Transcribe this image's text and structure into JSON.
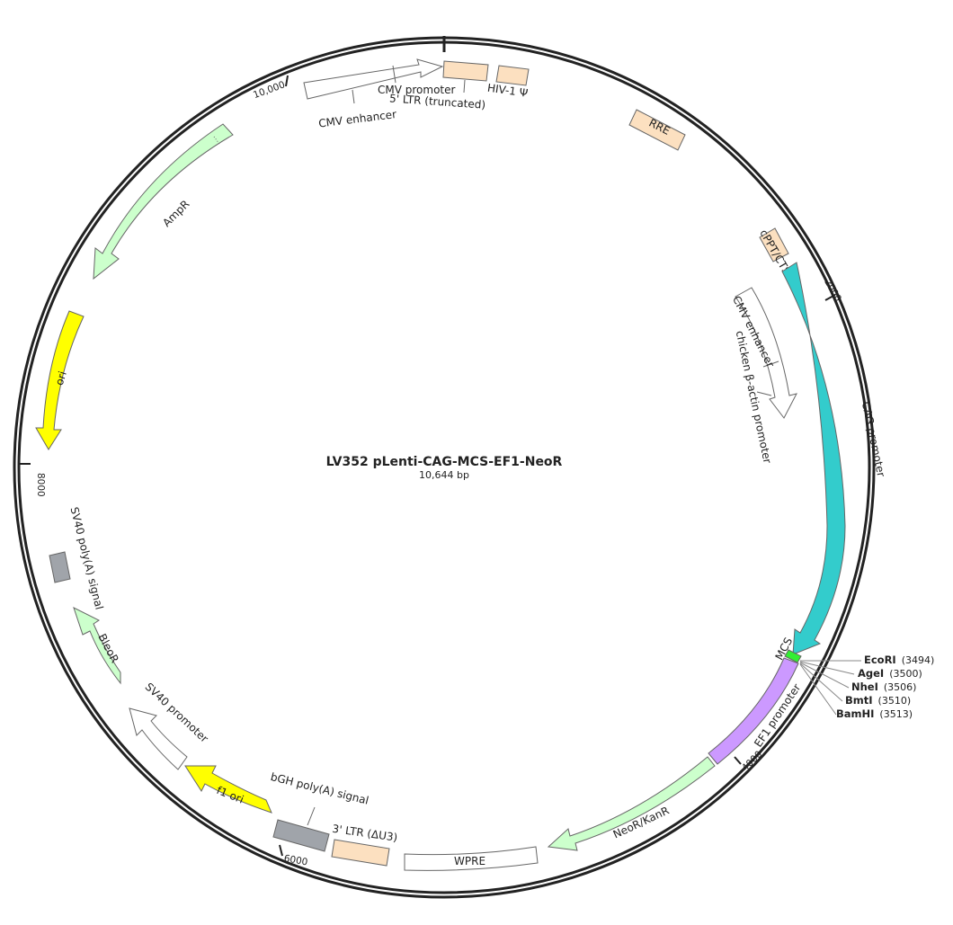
{
  "map": {
    "title": "LV352 pLenti-CAG-MCS-EF1-NeoR",
    "length_label": "10,644 bp"
  },
  "ticks": [
    "10,000",
    "2000",
    "4000",
    "6000",
    "8000"
  ],
  "features": {
    "cmv_enhancer_top": "CMV enhancer",
    "cmv_promoter_top": "CMV promoter",
    "ltr5": "5' LTR (truncated)",
    "psi": "HIV-1 Ψ",
    "rre": "RRE",
    "cppt": "cPPT/CTS",
    "cmv_enhancer_inner": "CMV enhancer",
    "chicken_actin": "chicken β-actin promoter",
    "cag": "CAG promoter",
    "mcs": "MCS",
    "ef1": "EF1 promoter",
    "neor": "NeoR/KanR",
    "wpre": "WPRE",
    "ltr3": "3' LTR (ΔU3)",
    "bgh": "bGH poly(A) signal",
    "f1ori": "f1 ori",
    "sv40_promoter": "SV40 promoter",
    "bleor": "BleoR",
    "sv40_polya": "SV40 poly(A) signal",
    "ori": "ori",
    "ampr": "AmpR"
  },
  "enzymes": [
    {
      "name": "EcoRI",
      "pos": "(3494)"
    },
    {
      "name": "AgeI",
      "pos": "(3500)"
    },
    {
      "name": "NheI",
      "pos": "(3506)"
    },
    {
      "name": "BmtI",
      "pos": "(3510)"
    },
    {
      "name": "BamHI",
      "pos": "(3513)"
    }
  ],
  "colors": {
    "ltr": "#fce0c0",
    "cag": "#33cccc",
    "ef1": "#cc99ff",
    "mcs": "#33ee33",
    "resistance": "#ccffcc",
    "ori": "#ffff00",
    "polya": "#a0a4aa",
    "open": "#ffffff",
    "outline": "#666666"
  }
}
